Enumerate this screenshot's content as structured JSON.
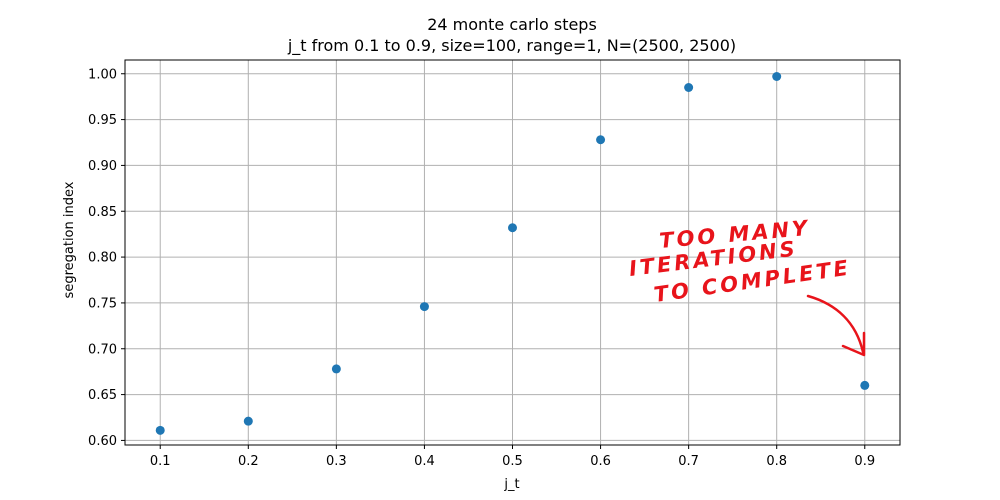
{
  "chart_data": {
    "type": "scatter",
    "title": "24 monte carlo steps",
    "subtitle": "j_t from 0.1 to 0.9, size=100, range=1, N=(2500, 2500)",
    "xlabel": "j_t",
    "ylabel": "segregation index",
    "xlim": [
      0.06,
      0.94
    ],
    "ylim": [
      0.595,
      1.015
    ],
    "x_ticks": [
      0.1,
      0.2,
      0.3,
      0.4,
      0.5,
      0.6,
      0.7,
      0.8,
      0.9
    ],
    "x_tick_labels": [
      "0.1",
      "0.2",
      "0.3",
      "0.4",
      "0.5",
      "0.6",
      "0.7",
      "0.8",
      "0.9"
    ],
    "y_ticks": [
      0.6,
      0.65,
      0.7,
      0.75,
      0.8,
      0.85,
      0.9,
      0.95,
      1.0
    ],
    "y_tick_labels": [
      "0.60",
      "0.65",
      "0.70",
      "0.75",
      "0.80",
      "0.85",
      "0.90",
      "0.95",
      "1.00"
    ],
    "grid": true,
    "marker_color": "#1f77b4",
    "x": [
      0.1,
      0.2,
      0.3,
      0.4,
      0.5,
      0.6,
      0.7,
      0.8,
      0.9
    ],
    "y": [
      0.611,
      0.621,
      0.678,
      0.746,
      0.832,
      0.928,
      0.985,
      0.997,
      0.66
    ]
  },
  "annotation": {
    "lines": [
      "TOO MANY",
      "ITERATIONS",
      "TO COMPLETE"
    ],
    "color": "#e8141b",
    "points_to_x": 0.9
  }
}
